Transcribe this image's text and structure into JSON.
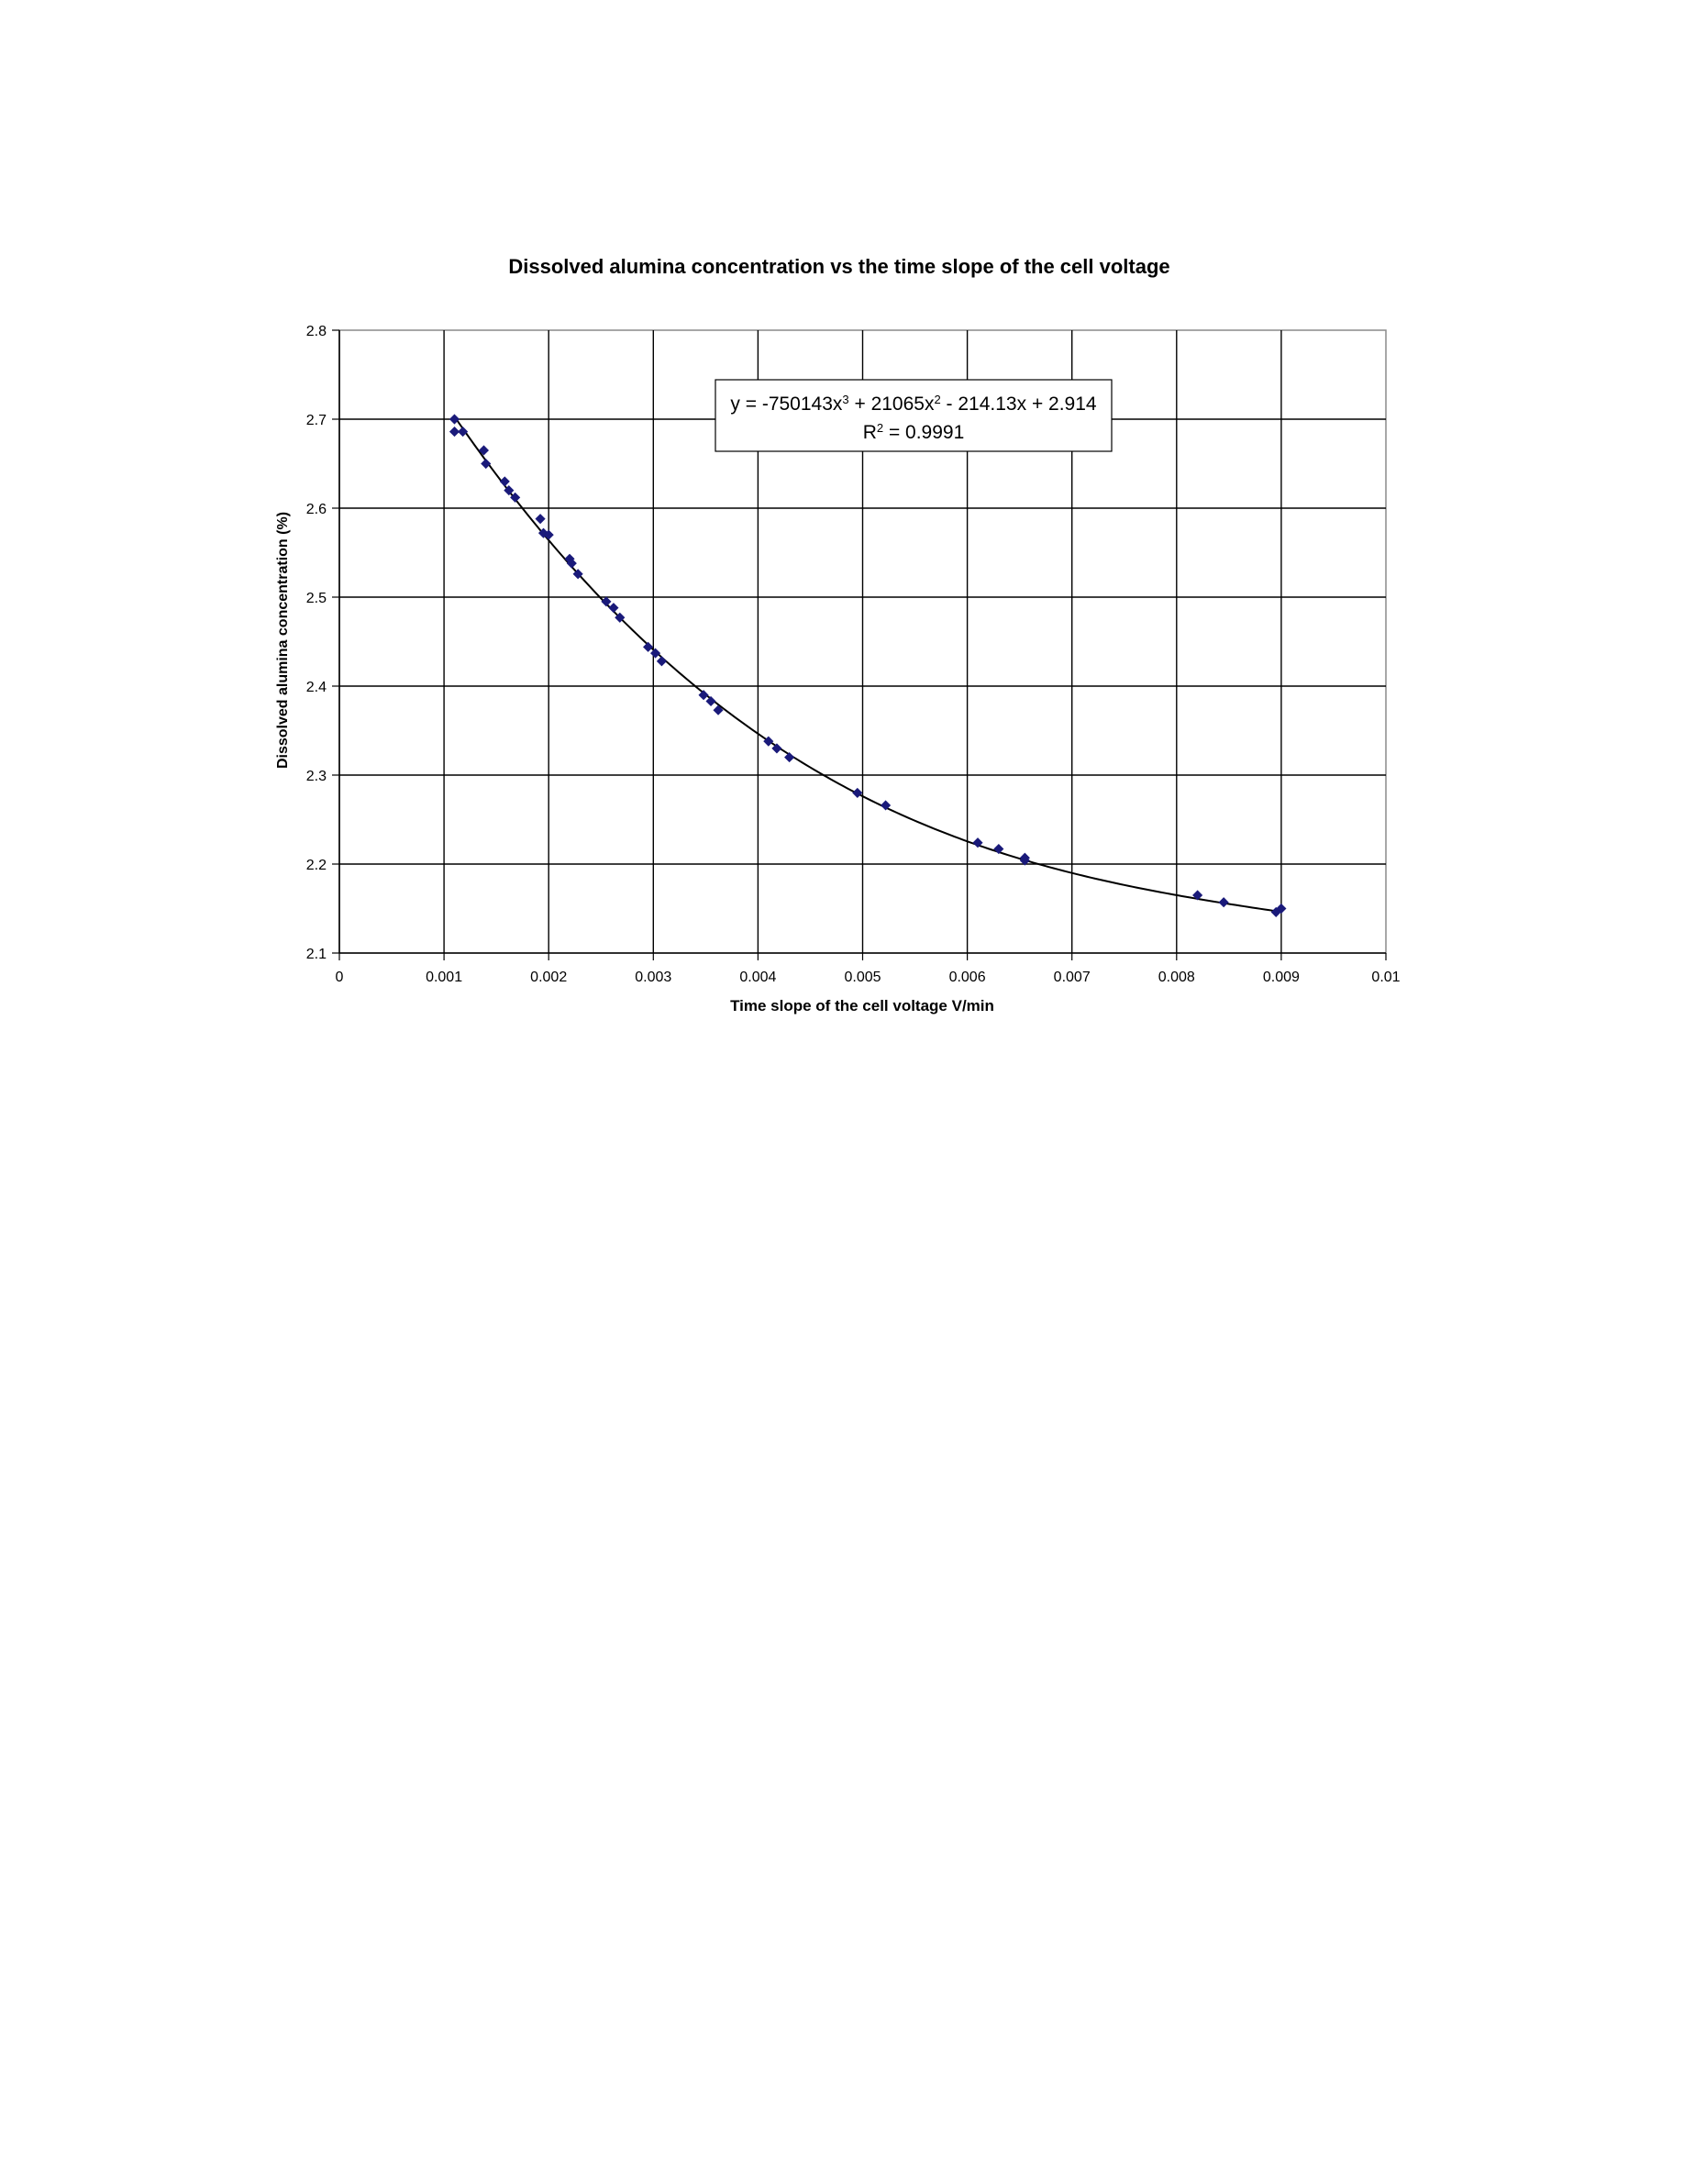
{
  "chart_data": {
    "type": "scatter",
    "title": "Dissolved alumina concentration vs the time slope of the cell voltage",
    "xlabel": "Time slope of the cell voltage V/min",
    "ylabel": "Dissolved alumina concentration (%)",
    "xlim": [
      0,
      0.01
    ],
    "ylim": [
      2.1,
      2.8
    ],
    "x_ticks": [
      "0",
      "0.001",
      "0.002",
      "0.003",
      "0.004",
      "0.005",
      "0.006",
      "0.007",
      "0.008",
      "0.009",
      "0.01"
    ],
    "y_ticks": [
      "2.1",
      "2.2",
      "2.3",
      "2.4",
      "2.5",
      "2.6",
      "2.7",
      "2.8"
    ],
    "grid": true,
    "legend": "none",
    "marker_color": "#1a1a7a",
    "trendline": {
      "type": "polynomial-3",
      "coefficients": [
        -750143,
        21065,
        -214.13,
        2.914
      ],
      "equation": {
        "prefix": "y = -750143x",
        "sup1": "3",
        "mid1": " + 21065x",
        "sup2": "2",
        "suffix": " - 214.13x + 2.914"
      },
      "r_squared": {
        "prefix": "R",
        "sup": "2",
        "suffix": " = 0.9991"
      }
    },
    "series": [
      {
        "points": [
          [
            0.0011,
            2.7
          ],
          [
            0.0011,
            2.686
          ],
          [
            0.00118,
            2.686
          ],
          [
            0.00138,
            2.665
          ],
          [
            0.0014,
            2.65
          ],
          [
            0.00158,
            2.63
          ],
          [
            0.00162,
            2.62
          ],
          [
            0.00168,
            2.612
          ],
          [
            0.00192,
            2.588
          ],
          [
            0.00195,
            2.572
          ],
          [
            0.002,
            2.57
          ],
          [
            0.0022,
            2.543
          ],
          [
            0.00222,
            2.538
          ],
          [
            0.00228,
            2.526
          ],
          [
            0.00255,
            2.495
          ],
          [
            0.00262,
            2.488
          ],
          [
            0.00268,
            2.477
          ],
          [
            0.00295,
            2.444
          ],
          [
            0.00302,
            2.437
          ],
          [
            0.00308,
            2.428
          ],
          [
            0.00348,
            2.39
          ],
          [
            0.00355,
            2.383
          ],
          [
            0.00362,
            2.373
          ],
          [
            0.0041,
            2.338
          ],
          [
            0.00418,
            2.33
          ],
          [
            0.0043,
            2.32
          ],
          [
            0.00495,
            2.28
          ],
          [
            0.00522,
            2.266
          ],
          [
            0.0061,
            2.224
          ],
          [
            0.0063,
            2.217
          ],
          [
            0.00655,
            2.207
          ],
          [
            0.00655,
            2.204
          ],
          [
            0.0082,
            2.165
          ],
          [
            0.00845,
            2.157
          ],
          [
            0.00895,
            2.146
          ],
          [
            0.009,
            2.15
          ]
        ]
      }
    ]
  }
}
